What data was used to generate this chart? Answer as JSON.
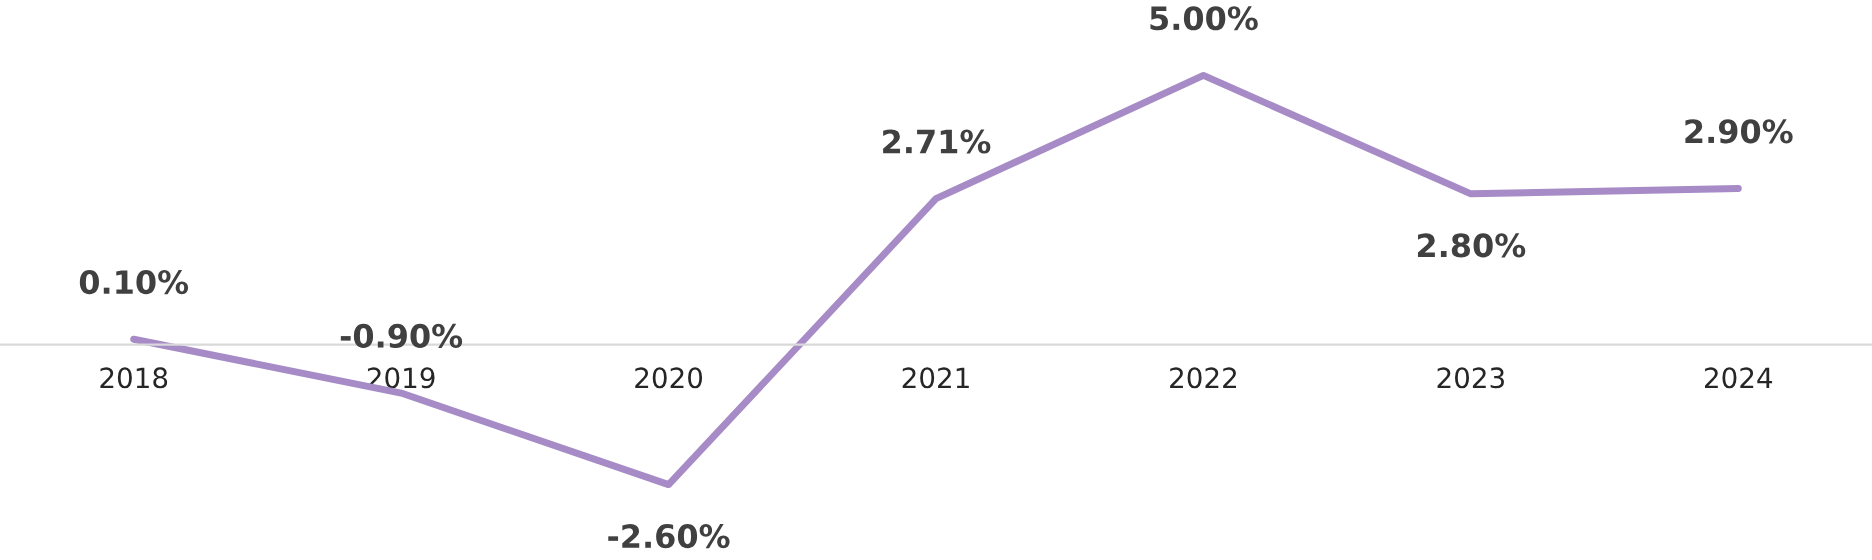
{
  "chart_data": {
    "type": "line",
    "categories": [
      "2018",
      "2019",
      "2020",
      "2021",
      "2022",
      "2023",
      "2024"
    ],
    "series": [
      {
        "color": "#a68bc6",
        "values": [
          0.1,
          -0.9,
          -2.6,
          2.71,
          5.0,
          2.8,
          2.9
        ],
        "value_labels": [
          "0.10%",
          "-0.90%",
          "-2.60%",
          "2.71%",
          "5.00%",
          "2.80%",
          "2.90%"
        ]
      }
    ],
    "ylim": [
      -4.0,
      6.4
    ],
    "tick_labels": "x",
    "grid": false,
    "legend": false,
    "marker": "none",
    "line_style": "solid"
  }
}
